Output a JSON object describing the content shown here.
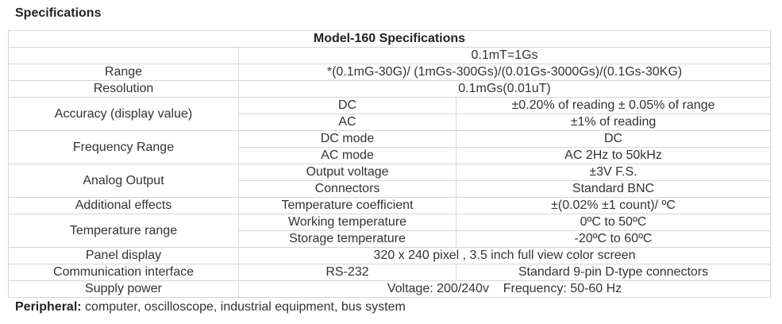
{
  "heading": "Specifications",
  "table": {
    "title": "Model-160 Specifications",
    "rows": [
      [
        "0.1mT=1Gs"
      ],
      [
        "Range",
        "*(0.1mG-30G)/ (1mGs-300Gs)/(0.01Gs-3000Gs)/(0.1Gs-30KG)"
      ],
      [
        "Resolution",
        "0.1mGs(0.01uT)"
      ],
      [
        "Accuracy (display value)",
        "DC",
        "±0.20% of reading ± 0.05% of range"
      ],
      [
        "AC",
        "±1% of reading"
      ],
      [
        "Frequency Range",
        "DC mode",
        "DC"
      ],
      [
        "AC mode",
        "AC 2Hz to 50kHz"
      ],
      [
        "Analog Output",
        "Output voltage",
        "±3V F.S."
      ],
      [
        "Connectors",
        "Standard BNC"
      ],
      [
        "Additional effects",
        "Temperature coefficient",
        "±(0.02% ±1 count)/ ºC"
      ],
      [
        "Temperature range",
        "Working temperature",
        "0ºC to 50ºC"
      ],
      [
        "Storage temperature",
        "-20ºC to 60ºC"
      ],
      [
        "Panel display",
        "320 x 240 pixel , 3.5 inch full view color screen"
      ],
      [
        "Communication interface",
        "RS-232",
        "Standard 9-pin D-type connectors"
      ],
      [
        "Supply power",
        "Voltage: 200/240v    Frequency: 50-60 Hz"
      ]
    ]
  },
  "footer": {
    "label": "Peripheral:",
    "text": " computer, oscilloscope, industrial equipment, bus system"
  }
}
